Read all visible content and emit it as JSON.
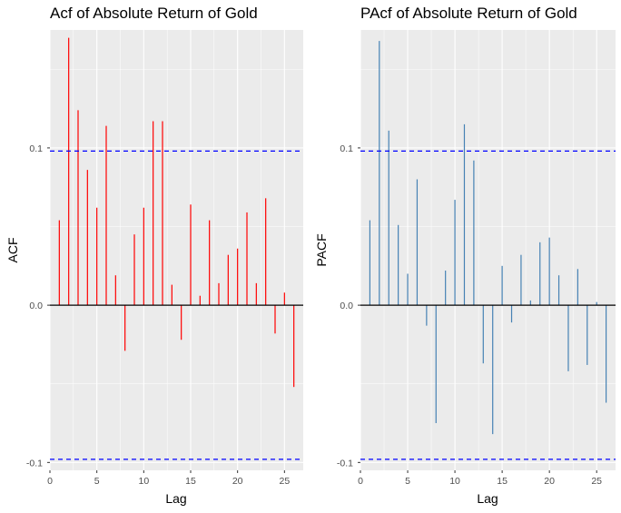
{
  "chart_data": [
    {
      "type": "bar",
      "title": "Acf of Absolute Return of Gold",
      "xlabel": "Lag",
      "ylabel": "ACF",
      "xlim": [
        0,
        27
      ],
      "ylim": [
        -0.105,
        0.175
      ],
      "x_ticks": [
        "0",
        "5",
        "10",
        "15",
        "20",
        "25"
      ],
      "y_ticks": [
        "-0.1",
        "0.0",
        "0.1"
      ],
      "confidence_bound": 0.098,
      "bar_color": "#ff0000",
      "bound_color": "#0000ff",
      "grid": true,
      "lags": [
        1,
        2,
        3,
        4,
        5,
        6,
        7,
        8,
        9,
        10,
        11,
        12,
        13,
        14,
        15,
        16,
        17,
        18,
        19,
        20,
        21,
        22,
        23,
        24,
        25,
        26
      ],
      "values": [
        0.054,
        0.17,
        0.124,
        0.086,
        0.062,
        0.114,
        0.019,
        -0.029,
        0.045,
        0.062,
        0.117,
        0.117,
        0.013,
        -0.022,
        0.064,
        0.006,
        0.054,
        0.014,
        0.032,
        0.036,
        0.059,
        0.014,
        0.068,
        -0.018,
        0.008,
        -0.052
      ]
    },
    {
      "type": "bar",
      "title": "PAcf of Absolute Return of Gold",
      "xlabel": "Lag",
      "ylabel": "PACF",
      "xlim": [
        0,
        27
      ],
      "ylim": [
        -0.105,
        0.175
      ],
      "x_ticks": [
        "0",
        "5",
        "10",
        "15",
        "20",
        "25"
      ],
      "y_ticks": [
        "-0.1",
        "0.0",
        "0.1"
      ],
      "confidence_bound": 0.098,
      "bar_color": "#4682b4",
      "bound_color": "#0000ff",
      "grid": true,
      "lags": [
        1,
        2,
        3,
        4,
        5,
        6,
        7,
        8,
        9,
        10,
        11,
        12,
        13,
        14,
        15,
        16,
        17,
        18,
        19,
        20,
        21,
        22,
        23,
        24,
        25,
        26
      ],
      "values": [
        0.054,
        0.168,
        0.111,
        0.051,
        0.02,
        0.08,
        -0.013,
        -0.075,
        0.022,
        0.067,
        0.115,
        0.092,
        -0.037,
        -0.082,
        0.025,
        -0.011,
        0.032,
        0.003,
        0.04,
        0.043,
        0.019,
        -0.042,
        0.023,
        -0.038,
        0.002,
        -0.062
      ]
    }
  ]
}
